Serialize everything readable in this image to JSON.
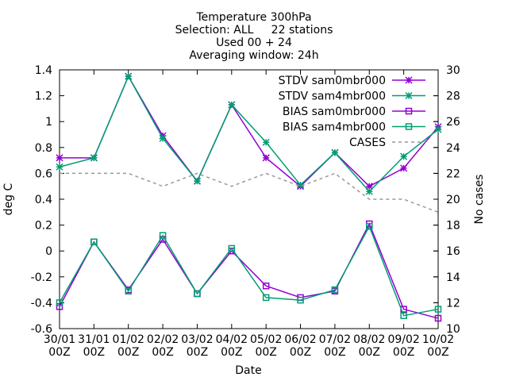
{
  "chart_data": {
    "type": "line",
    "title_lines": [
      "Temperature 300hPa",
      "Selection: ALL     22 stations",
      "Used 00 + 24",
      "Averaging window: 24h"
    ],
    "xlabel": "Date",
    "ylabel": "deg C",
    "y2label": "No cases",
    "categories": [
      [
        "30/01",
        "00Z"
      ],
      [
        "31/01",
        "00Z"
      ],
      [
        "01/02",
        "00Z"
      ],
      [
        "02/02",
        "00Z"
      ],
      [
        "03/02",
        "00Z"
      ],
      [
        "04/02",
        "00Z"
      ],
      [
        "05/02",
        "00Z"
      ],
      [
        "06/02",
        "00Z"
      ],
      [
        "07/02",
        "00Z"
      ],
      [
        "08/02",
        "00Z"
      ],
      [
        "09/02",
        "00Z"
      ],
      [
        "10/02",
        "00Z"
      ]
    ],
    "ylim": [
      -0.6,
      1.4
    ],
    "y_ticks": [
      "-0.6",
      "-0.4",
      "-0.2",
      "0",
      "0.2",
      "0.4",
      "0.6",
      "0.8",
      "1",
      "1.2",
      "1.4"
    ],
    "y2lim": [
      10,
      30
    ],
    "y2_ticks": [
      "10",
      "12",
      "14",
      "16",
      "18",
      "20",
      "22",
      "24",
      "26",
      "28",
      "30"
    ],
    "legend_position": "top-right",
    "grid": false,
    "series": [
      {
        "name": "STDV sam0mbr000",
        "axis": "y1",
        "color": "#9400d3",
        "marker": "star",
        "dash": false,
        "values": [
          0.72,
          0.72,
          1.35,
          0.89,
          0.54,
          1.13,
          0.72,
          0.5,
          0.76,
          0.5,
          0.64,
          0.96
        ]
      },
      {
        "name": "STDV sam4mbr000",
        "axis": "y1",
        "color": "#009e73",
        "marker": "star",
        "dash": false,
        "values": [
          0.65,
          0.72,
          1.35,
          0.87,
          0.54,
          1.13,
          0.84,
          0.51,
          0.76,
          0.46,
          0.73,
          0.94
        ]
      },
      {
        "name": "BIAS sam0mbr000",
        "axis": "y1",
        "color": "#9400d3",
        "marker": "square",
        "dash": false,
        "values": [
          -0.43,
          0.07,
          -0.3,
          0.09,
          -0.33,
          0.0,
          -0.27,
          -0.36,
          -0.31,
          0.21,
          -0.45,
          -0.52
        ]
      },
      {
        "name": "BIAS sam4mbr000",
        "axis": "y1",
        "color": "#009e73",
        "marker": "square",
        "dash": false,
        "values": [
          -0.4,
          0.07,
          -0.31,
          0.12,
          -0.33,
          0.02,
          -0.36,
          -0.38,
          -0.3,
          0.19,
          -0.5,
          -0.45
        ]
      },
      {
        "name": "CASES",
        "axis": "y2",
        "color": "#999999",
        "marker": "none",
        "dash": true,
        "values": [
          22,
          22,
          22,
          21,
          22,
          21,
          22,
          21,
          22,
          20,
          20,
          19
        ]
      }
    ]
  }
}
